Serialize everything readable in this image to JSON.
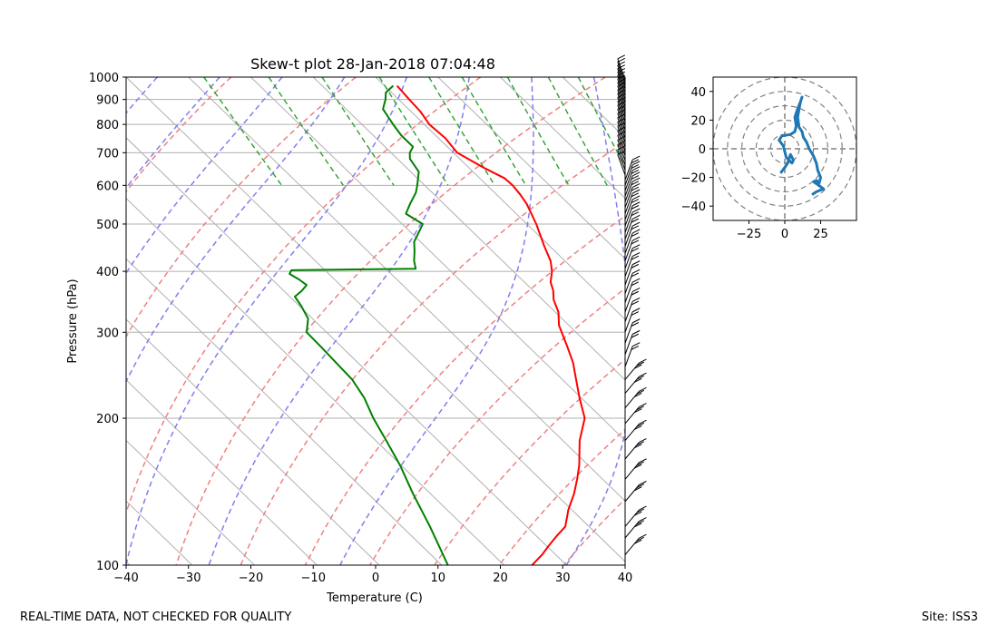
{
  "footer": {
    "left": "REAL-TIME DATA, NOT CHECKED FOR QUALITY",
    "right": "Site: ISS3"
  },
  "chart_data": [
    {
      "type": "skew-t",
      "title": "Skew-t plot 28-Jan-2018 07:04:48",
      "xlabel": "Temperature (C)",
      "ylabel": "Pressure (hPa)",
      "xlim": [
        -40,
        40
      ],
      "ylim": [
        1000,
        100
      ],
      "x_ticks": [
        -40,
        -30,
        -20,
        -10,
        0,
        10,
        20,
        30,
        40
      ],
      "y_ticks": [
        1000,
        900,
        800,
        700,
        600,
        500,
        400,
        300,
        200,
        100
      ],
      "grid": true,
      "dry_adiabats_theta_K": [
        250,
        270,
        290,
        310,
        330,
        350,
        370,
        390,
        410,
        430,
        450
      ],
      "moist_adiabats_start_C": [
        -35,
        -25,
        -15,
        -5,
        5,
        15,
        25,
        35
      ],
      "mixing_ratio_lines_gkg": [
        0.4,
        1,
        2,
        4,
        7,
        10,
        16,
        24,
        32
      ],
      "series": [
        {
          "name": "Temperature",
          "color": "#ff0000",
          "pressure": [
            960,
            900,
            850,
            800,
            750,
            700,
            650,
            620,
            600,
            575,
            550,
            500,
            450,
            420,
            400,
            380,
            365,
            350,
            330,
            310,
            300,
            280,
            260,
            240,
            220,
            200,
            180,
            160,
            150,
            140,
            130,
            120,
            115,
            110,
            105,
            100
          ],
          "temperature": [
            2,
            1.7,
            1.5,
            0.8,
            1.1,
            0.6,
            2.5,
            4,
            4.1,
            3.8,
            3.3,
            1.5,
            -0.9,
            -2.3,
            -3.8,
            -5.8,
            -6.8,
            -8.2,
            -9.5,
            -11.6,
            -12.3,
            -13.8,
            -15.5,
            -17.8,
            -20.3,
            -22.8,
            -27.3,
            -31.5,
            -34.1,
            -37,
            -40.5,
            -43.8,
            -46.6,
            -49.4,
            -52.2,
            -55.5
          ]
        },
        {
          "name": "Dewpoint",
          "color": "#008000",
          "pressure": [
            960,
            930,
            900,
            860,
            800,
            760,
            720,
            700,
            680,
            640,
            600,
            580,
            550,
            525,
            500,
            480,
            460,
            440,
            420,
            405,
            402,
            395,
            385,
            375,
            365,
            355,
            340,
            320,
            300,
            280,
            260,
            240,
            220,
            200,
            180,
            160,
            140,
            120,
            100
          ],
          "temperature": [
            1.4,
            -0.9,
            -2.1,
            -4.1,
            -5,
            -5.5,
            -5.5,
            -7,
            -8,
            -8.7,
            -11.2,
            -12.6,
            -15.4,
            -17.7,
            -16.7,
            -18.8,
            -21,
            -22.5,
            -24.2,
            -25.2,
            -45.4,
            -46.3,
            -45.7,
            -45.4,
            -47.1,
            -49.2,
            -49.7,
            -50.7,
            -53.2,
            -53.3,
            -53.5,
            -53.7,
            -54.8,
            -56.7,
            -58.3,
            -60.2,
            -62.8,
            -65.5,
            -69
          ]
        }
      ]
    },
    {
      "type": "hodograph",
      "xlim": [
        -50,
        50
      ],
      "ylim": [
        -50,
        50
      ],
      "x_ticks": [
        -25,
        0,
        25
      ],
      "y_ticks": [
        40,
        20,
        0,
        -20,
        -40
      ],
      "rings": [
        10,
        20,
        30,
        40,
        50
      ],
      "u": [
        -3,
        0,
        2,
        3,
        4,
        6,
        5,
        3,
        1,
        -1,
        -4,
        -2,
        4,
        7,
        8,
        7,
        9,
        11,
        12,
        11,
        10,
        9,
        10,
        12,
        13,
        15,
        17,
        20,
        22,
        23,
        25,
        24,
        22,
        20,
        23,
        27,
        22,
        19
      ],
      "v": [
        -17,
        -13,
        -10,
        -7,
        -4,
        -8,
        -10,
        -8,
        -6,
        2,
        6,
        9,
        10,
        12,
        16,
        22,
        28,
        33,
        36,
        33,
        28,
        22,
        15,
        12,
        8,
        5,
        0,
        -5,
        -10,
        -15,
        -20,
        -24,
        -22,
        -23,
        -25,
        -28,
        -30,
        -32
      ]
    }
  ]
}
